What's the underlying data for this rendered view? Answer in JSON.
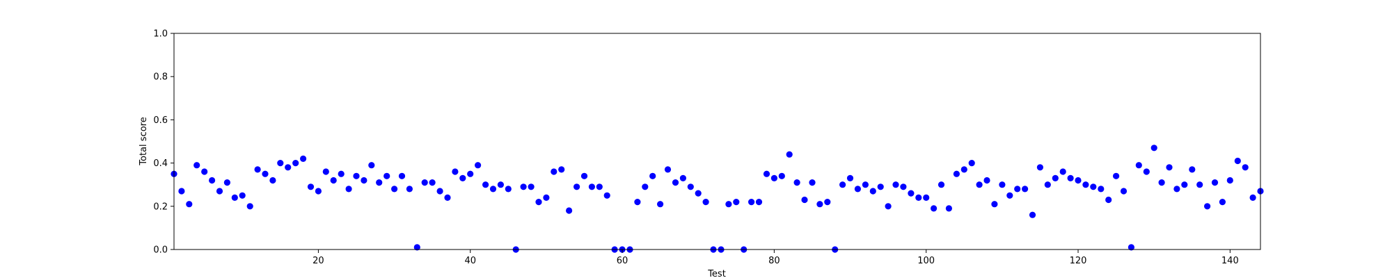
{
  "chart_data": {
    "type": "scatter",
    "title": "",
    "xlabel": "Test",
    "ylabel": "Total score",
    "xlim": [
      1,
      144
    ],
    "ylim": [
      0.0,
      1.0
    ],
    "xticks": [
      20,
      40,
      60,
      80,
      100,
      120,
      140
    ],
    "yticks": [
      0.0,
      0.2,
      0.4,
      0.6,
      0.8,
      1.0
    ],
    "grid": false,
    "legend": "none",
    "marker_color": "#0000ff",
    "x": [
      1,
      2,
      3,
      4,
      5,
      6,
      7,
      8,
      9,
      10,
      11,
      12,
      13,
      14,
      15,
      16,
      17,
      18,
      19,
      20,
      21,
      22,
      23,
      24,
      25,
      26,
      27,
      28,
      29,
      30,
      31,
      32,
      33,
      34,
      35,
      36,
      37,
      38,
      39,
      40,
      41,
      42,
      43,
      44,
      45,
      46,
      47,
      48,
      49,
      50,
      51,
      52,
      53,
      54,
      55,
      56,
      57,
      58,
      59,
      60,
      61,
      62,
      63,
      64,
      65,
      66,
      67,
      68,
      69,
      70,
      71,
      72,
      73,
      74,
      75,
      76,
      77,
      78,
      79,
      80,
      81,
      82,
      83,
      84,
      85,
      86,
      87,
      88,
      89,
      90,
      91,
      92,
      93,
      94,
      95,
      96,
      97,
      98,
      99,
      100,
      101,
      102,
      103,
      104,
      105,
      106,
      107,
      108,
      109,
      110,
      111,
      112,
      113,
      114,
      115,
      116,
      117,
      118,
      119,
      120,
      121,
      122,
      123,
      124,
      125,
      126,
      127,
      128,
      129,
      130,
      131,
      132,
      133,
      134,
      135,
      136,
      137,
      138,
      139,
      140,
      141,
      142,
      143,
      144
    ],
    "y": [
      0.35,
      0.27,
      0.21,
      0.39,
      0.36,
      0.32,
      0.27,
      0.31,
      0.24,
      0.25,
      0.2,
      0.37,
      0.35,
      0.32,
      0.4,
      0.38,
      0.4,
      0.42,
      0.29,
      0.27,
      0.36,
      0.32,
      0.35,
      0.28,
      0.34,
      0.32,
      0.39,
      0.31,
      0.34,
      0.28,
      0.34,
      0.28,
      0.01,
      0.31,
      0.31,
      0.27,
      0.24,
      0.36,
      0.33,
      0.35,
      0.39,
      0.3,
      0.28,
      0.3,
      0.28,
      0.0,
      0.29,
      0.29,
      0.22,
      0.24,
      0.36,
      0.37,
      0.18,
      0.29,
      0.34,
      0.29,
      0.29,
      0.25,
      0.0,
      0.0,
      0.0,
      0.22,
      0.29,
      0.34,
      0.21,
      0.37,
      0.31,
      0.33,
      0.29,
      0.26,
      0.22,
      0.0,
      0.0,
      0.21,
      0.22,
      0.0,
      0.22,
      0.22,
      0.35,
      0.33,
      0.34,
      0.44,
      0.31,
      0.23,
      0.31,
      0.21,
      0.22,
      0.0,
      0.3,
      0.33,
      0.28,
      0.3,
      0.27,
      0.29,
      0.2,
      0.3,
      0.29,
      0.26,
      0.24,
      0.24,
      0.19,
      0.3,
      0.19,
      0.35,
      0.37,
      0.4,
      0.3,
      0.32,
      0.21,
      0.3,
      0.25,
      0.28,
      0.28,
      0.16,
      0.38,
      0.3,
      0.33,
      0.36,
      0.33,
      0.32,
      0.3,
      0.29,
      0.28,
      0.23,
      0.34,
      0.27,
      0.01,
      0.39,
      0.36,
      0.47,
      0.31,
      0.38,
      0.28,
      0.3,
      0.37,
      0.3,
      0.2,
      0.31,
      0.22,
      0.32,
      0.41,
      0.38,
      0.24,
      0.27
    ]
  }
}
